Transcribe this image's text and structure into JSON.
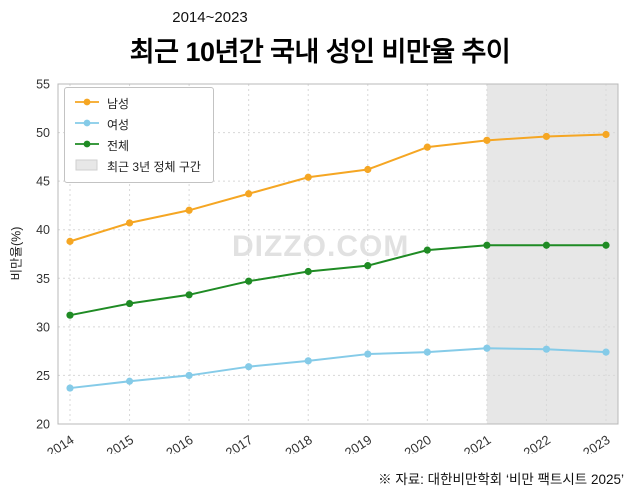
{
  "header": {
    "subtitle": "2014~2023",
    "title": "최근 10년간 국내 성인 비만율 추이"
  },
  "watermark": "DIZZO.COM",
  "footer": {
    "source": "※ 자료: 대한비만학회 ‘비만 팩트시트 2025’"
  },
  "chart_data": {
    "type": "line",
    "title": "최근 10년간 국내 성인 비만율 추이",
    "subtitle": "2014~2023",
    "xlabel": "",
    "ylabel": "비만율(%)",
    "x": [
      2014,
      2015,
      2016,
      2017,
      2018,
      2019,
      2020,
      2021,
      2022,
      2023
    ],
    "series": [
      {
        "name": "남성",
        "color": "#f5a623",
        "values": [
          38.8,
          40.7,
          42.0,
          43.7,
          45.4,
          46.2,
          48.5,
          49.2,
          49.6,
          49.8
        ]
      },
      {
        "name": "여성",
        "color": "#85cbe8",
        "values": [
          23.7,
          24.4,
          25.0,
          25.9,
          26.5,
          27.2,
          27.4,
          27.8,
          27.7,
          27.4
        ]
      },
      {
        "name": "전체",
        "color": "#1f8b24",
        "values": [
          31.2,
          32.4,
          33.3,
          34.7,
          35.7,
          36.3,
          37.9,
          38.4,
          38.4,
          38.4
        ]
      }
    ],
    "shaded_region": {
      "label": "최근 3년 정체 구간",
      "from": 2021,
      "to": 2023,
      "color": "#e7e7e7"
    },
    "ylim": [
      20,
      55
    ],
    "yticks": [
      20,
      25,
      30,
      35,
      40,
      45,
      50,
      55
    ],
    "grid": true,
    "legend_position": "upper left"
  }
}
